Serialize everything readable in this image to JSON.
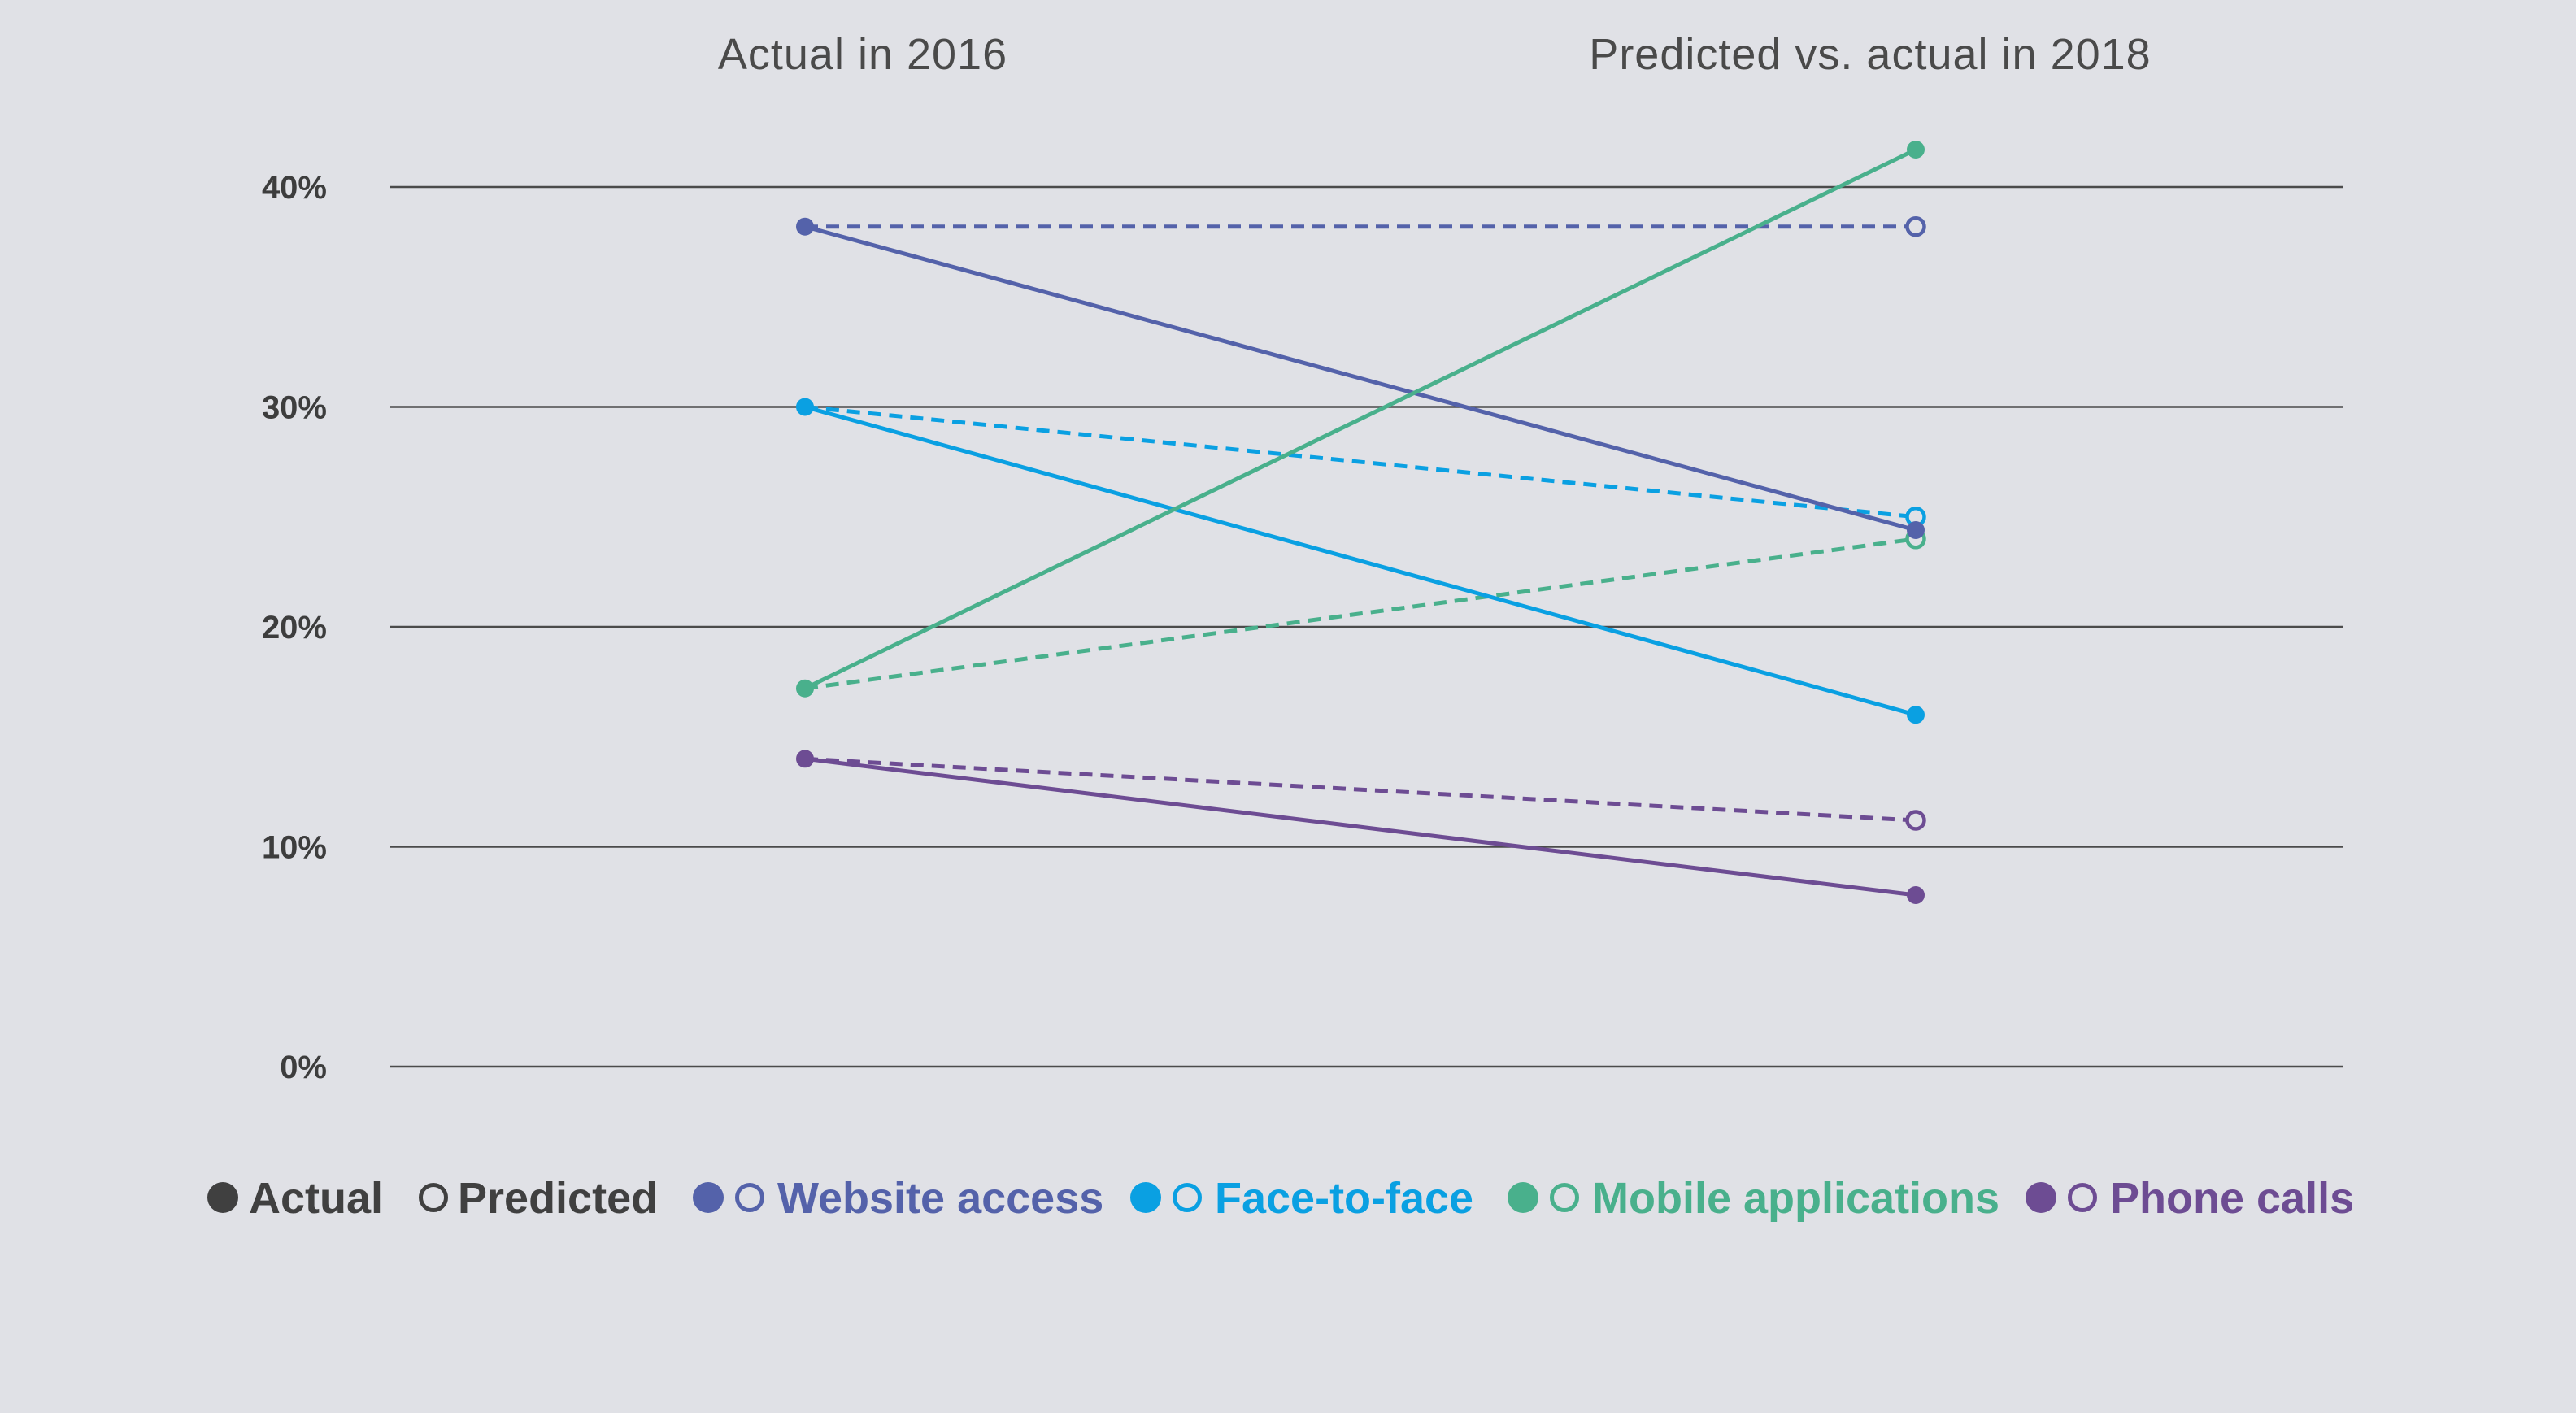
{
  "chart_data": {
    "type": "line",
    "subtype": "slope",
    "columns": [
      {
        "key": "2016",
        "title": "Actual in 2016"
      },
      {
        "key": "2018",
        "title": "Predicted vs. actual in 2018"
      }
    ],
    "y_ticks": [
      "0%",
      "10%",
      "20%",
      "30%",
      "40%"
    ],
    "y_tick_values": [
      0,
      10,
      20,
      30,
      40
    ],
    "ylim": [
      0,
      40
    ],
    "grid": true,
    "series": [
      {
        "name": "Website access",
        "color": "#5462aa",
        "actual_2016": 38.2,
        "predicted_2018": 38.2,
        "actual_2018": 24.4
      },
      {
        "name": "Face-to-face",
        "color": "#0aa0e2",
        "actual_2016": 30.0,
        "predicted_2018": 25.0,
        "actual_2018": 16.0
      },
      {
        "name": "Mobile applications",
        "color": "#49b08c",
        "actual_2016": 17.2,
        "predicted_2018": 24.0,
        "actual_2018": 41.7
      },
      {
        "name": "Phone calls",
        "color": "#6d4c93",
        "actual_2016": 14.0,
        "predicted_2018": 11.2,
        "actual_2018": 7.8
      }
    ],
    "legend": {
      "position": "bottom",
      "actual_label": "Actual",
      "predicted_label": "Predicted",
      "key_color": "#404040"
    }
  }
}
